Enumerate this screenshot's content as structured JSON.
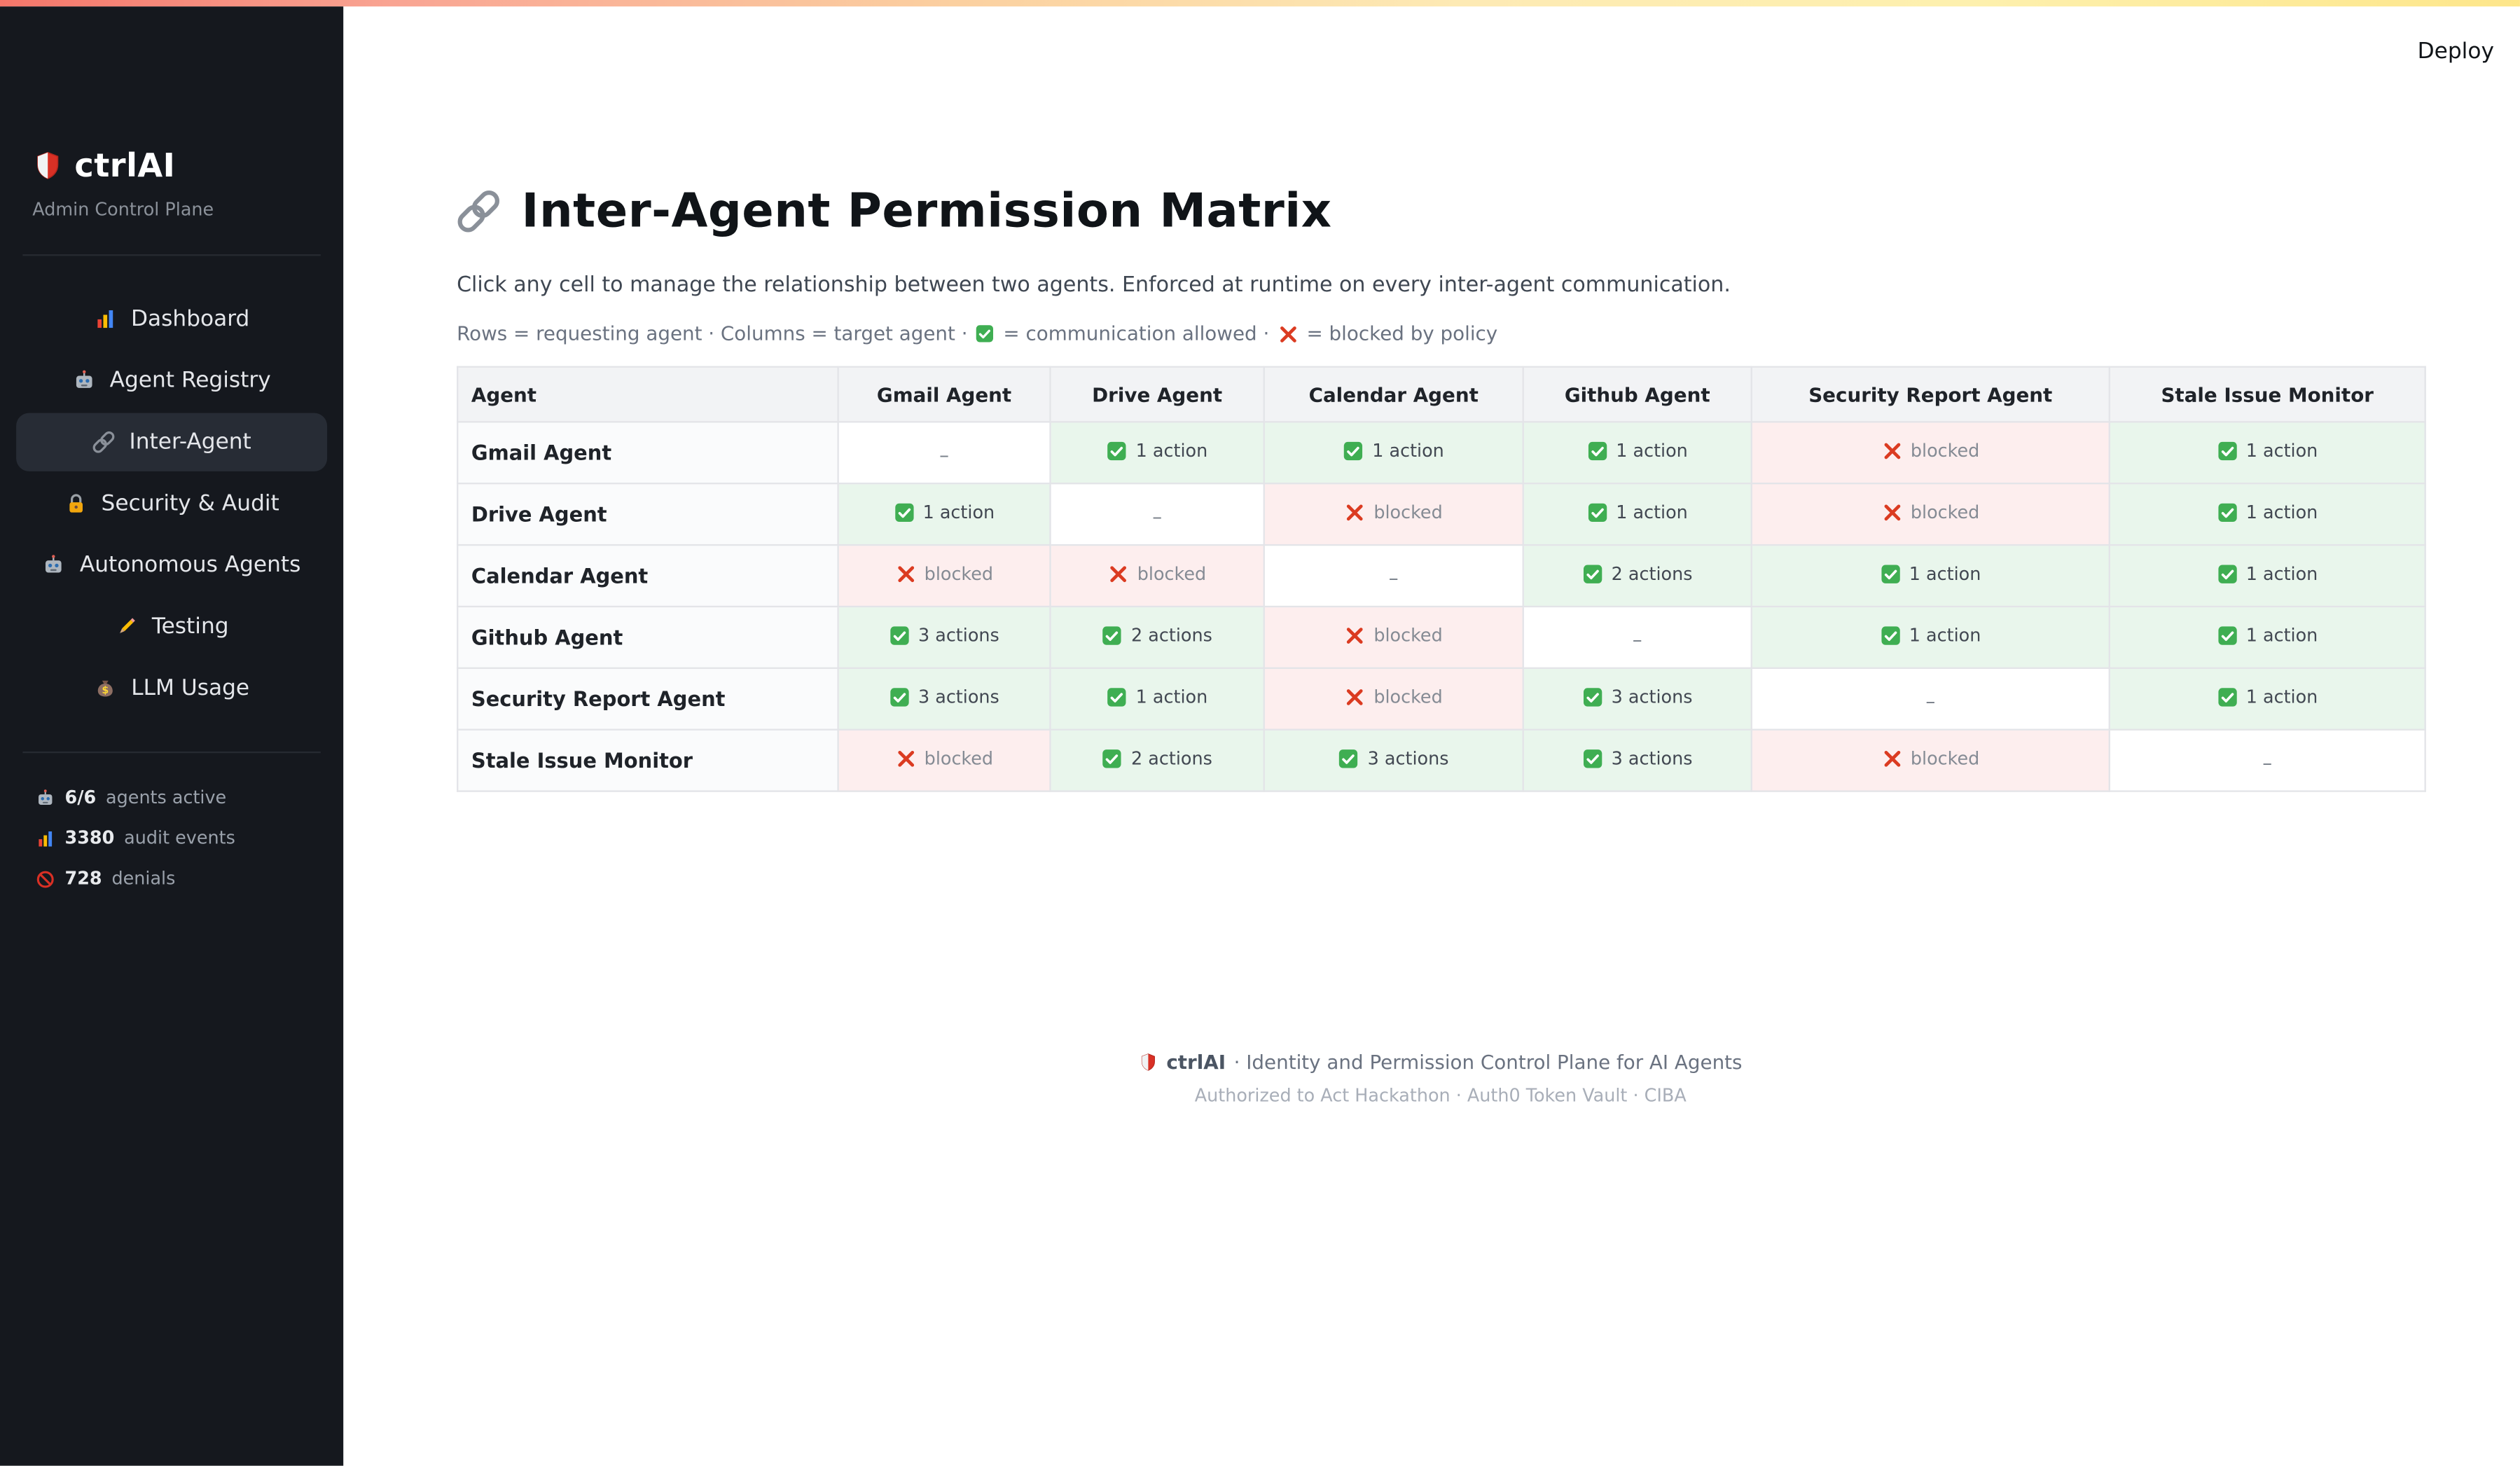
{
  "header": {
    "deploy_label": "Deploy"
  },
  "sidebar": {
    "brand": "ctrlAI",
    "subtitle": "Admin Control Plane",
    "nav": [
      {
        "label": "Dashboard",
        "icon": "bar-chart-icon",
        "active": false
      },
      {
        "label": "Agent Registry",
        "icon": "robot-icon",
        "active": false
      },
      {
        "label": "Inter-Agent",
        "icon": "link-icon",
        "active": true
      },
      {
        "label": "Security & Audit",
        "icon": "lock-icon",
        "active": false
      },
      {
        "label": "Autonomous Agents",
        "icon": "robot-icon",
        "active": false
      },
      {
        "label": "Testing",
        "icon": "pencil-icon",
        "active": false
      },
      {
        "label": "LLM Usage",
        "icon": "money-bag-icon",
        "active": false
      }
    ],
    "stats": [
      {
        "value": "6/6",
        "label": "agents active",
        "icon": "robot-icon"
      },
      {
        "value": "3380",
        "label": "audit events",
        "icon": "bar-chart-icon"
      },
      {
        "value": "728",
        "label": "denials",
        "icon": "no-entry-icon"
      }
    ]
  },
  "main": {
    "title": "Inter-Agent Permission Matrix",
    "subtitle": "Click any cell to manage the relationship between two agents. Enforced at runtime on every inter-agent communication.",
    "legend": {
      "part1": "Rows = requesting agent · Columns = target agent ·",
      "allowed_text": "= communication allowed ·",
      "blocked_text": "= blocked by policy"
    }
  },
  "matrix": {
    "columns": [
      "Agent",
      "Gmail Agent",
      "Drive Agent",
      "Calendar Agent",
      "Github Agent",
      "Security Report Agent",
      "Stale Issue Monitor"
    ],
    "rows": [
      {
        "agent": "Gmail Agent",
        "cells": [
          {
            "type": "self",
            "label": "–"
          },
          {
            "type": "allowed",
            "label": "1 action"
          },
          {
            "type": "allowed",
            "label": "1 action"
          },
          {
            "type": "allowed",
            "label": "1 action"
          },
          {
            "type": "blocked",
            "label": "blocked"
          },
          {
            "type": "allowed",
            "label": "1 action"
          }
        ]
      },
      {
        "agent": "Drive Agent",
        "cells": [
          {
            "type": "allowed",
            "label": "1 action"
          },
          {
            "type": "self",
            "label": "–"
          },
          {
            "type": "blocked",
            "label": "blocked"
          },
          {
            "type": "allowed",
            "label": "1 action"
          },
          {
            "type": "blocked",
            "label": "blocked"
          },
          {
            "type": "allowed",
            "label": "1 action"
          }
        ]
      },
      {
        "agent": "Calendar Agent",
        "cells": [
          {
            "type": "blocked",
            "label": "blocked"
          },
          {
            "type": "blocked",
            "label": "blocked"
          },
          {
            "type": "self",
            "label": "–"
          },
          {
            "type": "allowed",
            "label": "2 actions"
          },
          {
            "type": "allowed",
            "label": "1 action"
          },
          {
            "type": "allowed",
            "label": "1 action"
          }
        ]
      },
      {
        "agent": "Github Agent",
        "cells": [
          {
            "type": "allowed",
            "label": "3 actions"
          },
          {
            "type": "allowed",
            "label": "2 actions"
          },
          {
            "type": "blocked",
            "label": "blocked"
          },
          {
            "type": "self",
            "label": "–"
          },
          {
            "type": "allowed",
            "label": "1 action"
          },
          {
            "type": "allowed",
            "label": "1 action"
          }
        ]
      },
      {
        "agent": "Security Report Agent",
        "cells": [
          {
            "type": "allowed",
            "label": "3 actions"
          },
          {
            "type": "allowed",
            "label": "1 action"
          },
          {
            "type": "blocked",
            "label": "blocked"
          },
          {
            "type": "allowed",
            "label": "3 actions"
          },
          {
            "type": "self",
            "label": "–"
          },
          {
            "type": "allowed",
            "label": "1 action"
          }
        ]
      },
      {
        "agent": "Stale Issue Monitor",
        "cells": [
          {
            "type": "blocked",
            "label": "blocked"
          },
          {
            "type": "allowed",
            "label": "2 actions"
          },
          {
            "type": "allowed",
            "label": "3 actions"
          },
          {
            "type": "allowed",
            "label": "3 actions"
          },
          {
            "type": "blocked",
            "label": "blocked"
          },
          {
            "type": "self",
            "label": "–"
          }
        ]
      }
    ]
  },
  "footer": {
    "brand": "ctrlAI",
    "line1_rest": "· Identity and Permission Control Plane for AI Agents",
    "line2": "Authorized to Act Hackathon · Auth0 Token Vault · CIBA"
  },
  "icons": {
    "shield-icon": "🛡",
    "bar-chart-icon": "📊",
    "robot-icon": "🤖",
    "link-icon": "🔗",
    "lock-icon": "🔒",
    "pencil-icon": "✏",
    "money-bag-icon": "💰",
    "no-entry-icon": "🚫",
    "check-icon": "✅",
    "x-icon": "❌"
  },
  "colors": {
    "sidebar_bg": "#15181e",
    "allowed_bg": "#e9f6ec",
    "blocked_bg": "#fdeeee",
    "check_green": "#3fae52",
    "x_red": "#db3b21",
    "accent_gradient_start": "#f4766a",
    "accent_gradient_end": "#fde68a"
  }
}
